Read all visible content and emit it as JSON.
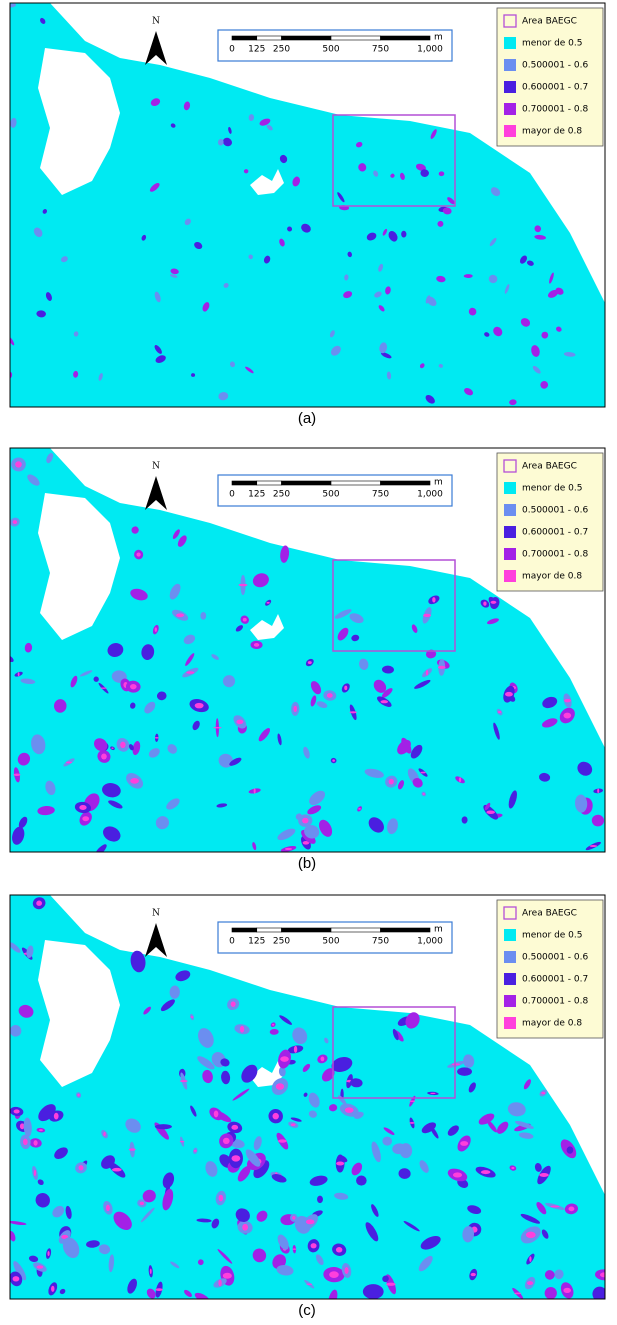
{
  "panels": [
    {
      "caption": "(a)",
      "north": "N",
      "scale": {
        "ticks": [
          {
            "value": 0,
            "label": "0"
          },
          {
            "value": 125,
            "label": "125"
          },
          {
            "value": 250,
            "label": "250"
          },
          {
            "value": 500,
            "label": "500"
          },
          {
            "value": 750,
            "label": "750"
          },
          {
            "value": 1000,
            "label": "1,000"
          }
        ],
        "unit": "m"
      },
      "legend": [
        {
          "label": "Area BAEGC",
          "color": "#b44fd6"
        },
        {
          "label": "menor de  0.5",
          "color": "#00eaf2"
        },
        {
          "label": "0.500001 - 0.6",
          "color": "#6b8ef0"
        },
        {
          "label": "0.600001 - 0.7",
          "color": "#4a1fe0"
        },
        {
          "label": "0.700001 - 0.8",
          "color": "#a321e6"
        },
        {
          "label": "mayor de 0.8",
          "color": "#ff3fdc"
        }
      ]
    },
    {
      "caption": "(b)",
      "north": "N",
      "scale": {
        "ticks": [
          {
            "value": 0,
            "label": "0"
          },
          {
            "value": 125,
            "label": "125"
          },
          {
            "value": 250,
            "label": "250"
          },
          {
            "value": 500,
            "label": "500"
          },
          {
            "value": 750,
            "label": "750"
          },
          {
            "value": 1000,
            "label": "1,000"
          }
        ],
        "unit": "m"
      },
      "legend": [
        {
          "label": "Area BAEGC",
          "color": "#b44fd6"
        },
        {
          "label": "menor de  0.5",
          "color": "#00eaf2"
        },
        {
          "label": "0.500001 - 0.6",
          "color": "#6b8ef0"
        },
        {
          "label": "0.600001 - 0.7",
          "color": "#4a1fe0"
        },
        {
          "label": "0.700001 - 0.8",
          "color": "#a321e6"
        },
        {
          "label": "mayor de 0.8",
          "color": "#ff3fdc"
        }
      ]
    },
    {
      "caption": "(c)",
      "north": "N",
      "scale": {
        "ticks": [
          {
            "value": 0,
            "label": "0"
          },
          {
            "value": 125,
            "label": "125"
          },
          {
            "value": 250,
            "label": "250"
          },
          {
            "value": 500,
            "label": "500"
          },
          {
            "value": 750,
            "label": "750"
          },
          {
            "value": 1000,
            "label": "1,000"
          }
        ],
        "unit": "m"
      },
      "legend": [
        {
          "label": "Area BAEGC",
          "color": "#b44fd6"
        },
        {
          "label": "menor de  0.5",
          "color": "#00eaf2"
        },
        {
          "label": "0.500001 - 0.6",
          "color": "#6b8ef0"
        },
        {
          "label": "0.600001 - 0.7",
          "color": "#4a1fe0"
        },
        {
          "label": "0.700001 - 0.8",
          "color": "#a321e6"
        },
        {
          "label": "mayor de 0.8",
          "color": "#ff3fdc"
        }
      ]
    }
  ]
}
